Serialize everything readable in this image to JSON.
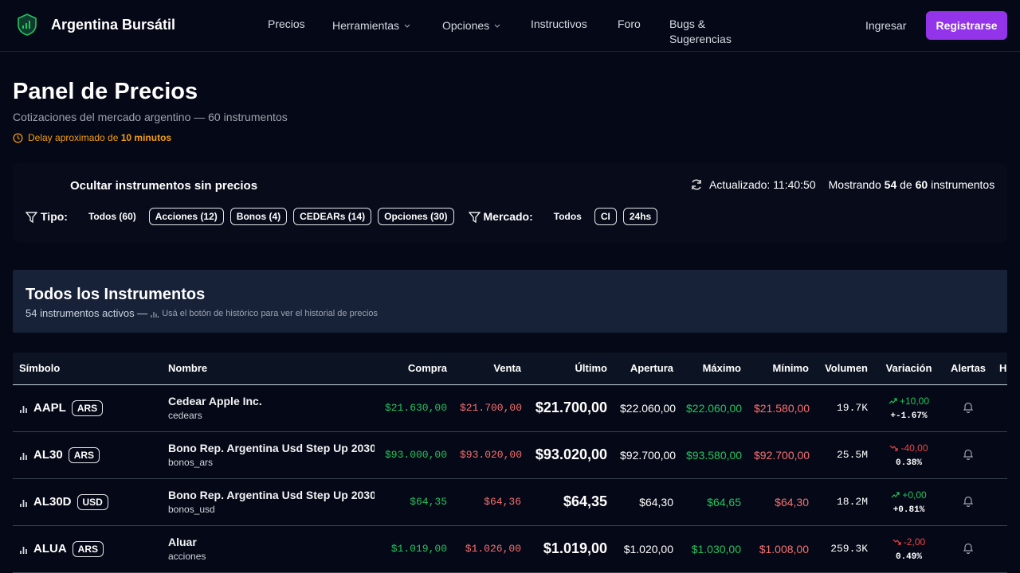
{
  "nav": {
    "brand": "Argentina Bursátil",
    "links": [
      "Precios",
      "Herramientas",
      "Opciones",
      "Instructivos",
      "Foro",
      "Bugs & Sugerencias"
    ],
    "login": "Ingresar",
    "register": "Registrarse"
  },
  "header": {
    "title": "Panel de Precios",
    "subtitle": "Cotizaciones del mercado argentino — 60 instrumentos",
    "delay_prefix": "Delay aproximado de",
    "delay_value": "10 minutos"
  },
  "filters": {
    "hide_label": "Ocultar instrumentos sin precios",
    "updated": "Actualizado: 11:40:50",
    "showing_prefix": "Mostrando",
    "showing_count": "54",
    "showing_of": "de",
    "showing_total": "60",
    "showing_suffix": "instrumentos",
    "tipo_label": "Tipo:",
    "tipo_options": [
      "Todos (60)",
      "Acciones (12)",
      "Bonos (4)",
      "CEDEARs (14)",
      "Opciones (30)"
    ],
    "mercado_label": "Mercado:",
    "mercado_options": [
      "Todos",
      "CI",
      "24hs"
    ]
  },
  "section": {
    "title": "Todos los Instrumentos",
    "subtitle": "54 instrumentos activos —",
    "hint": "Usá el botón de histórico para ver el historial de precios"
  },
  "table": {
    "columns": [
      "Símbolo",
      "Nombre",
      "Compra",
      "Venta",
      "Último",
      "Apertura",
      "Máximo",
      "Mínimo",
      "Volumen",
      "Variación",
      "Alertas",
      "H"
    ],
    "rows": [
      {
        "symbol": "AAPL",
        "currency": "ARS",
        "name": "Cedear Apple Inc.",
        "category": "cedears",
        "bid": "$21.630,00",
        "ask": "$21.700,00",
        "last": "$21.700,00",
        "open": "$22.060,00",
        "high": "$22.060,00",
        "low": "$21.580,00",
        "volume": "19.7K",
        "change": "+10,00",
        "change_pct": "+-1.67%"
      },
      {
        "symbol": "AL30",
        "currency": "ARS",
        "name": "Bono Rep. Argentina Usd Step Up 2030",
        "category": "bonos_ars",
        "bid": "$93.000,00",
        "ask": "$93.020,00",
        "last": "$93.020,00",
        "open": "$92.700,00",
        "high": "$93.580,00",
        "low": "$92.700,00",
        "volume": "25.5M",
        "change": "-40,00",
        "change_pct": "0.38%"
      },
      {
        "symbol": "AL30D",
        "currency": "USD",
        "name": "Bono Rep. Argentina Usd Step Up 2030",
        "category": "bonos_usd",
        "bid": "$64,35",
        "ask": "$64,36",
        "last": "$64,35",
        "open": "$64,30",
        "high": "$64,65",
        "low": "$64,30",
        "volume": "18.2M",
        "change": "+0,00",
        "change_pct": "+0.81%"
      },
      {
        "symbol": "ALUA",
        "currency": "ARS",
        "name": "Aluar",
        "category": "acciones",
        "bid": "$1.019,00",
        "ask": "$1.026,00",
        "last": "$1.019,00",
        "open": "$1.020,00",
        "high": "$1.030,00",
        "low": "$1.008,00",
        "volume": "259.3K",
        "change": "-2,00",
        "change_pct": "0.49%"
      }
    ]
  }
}
